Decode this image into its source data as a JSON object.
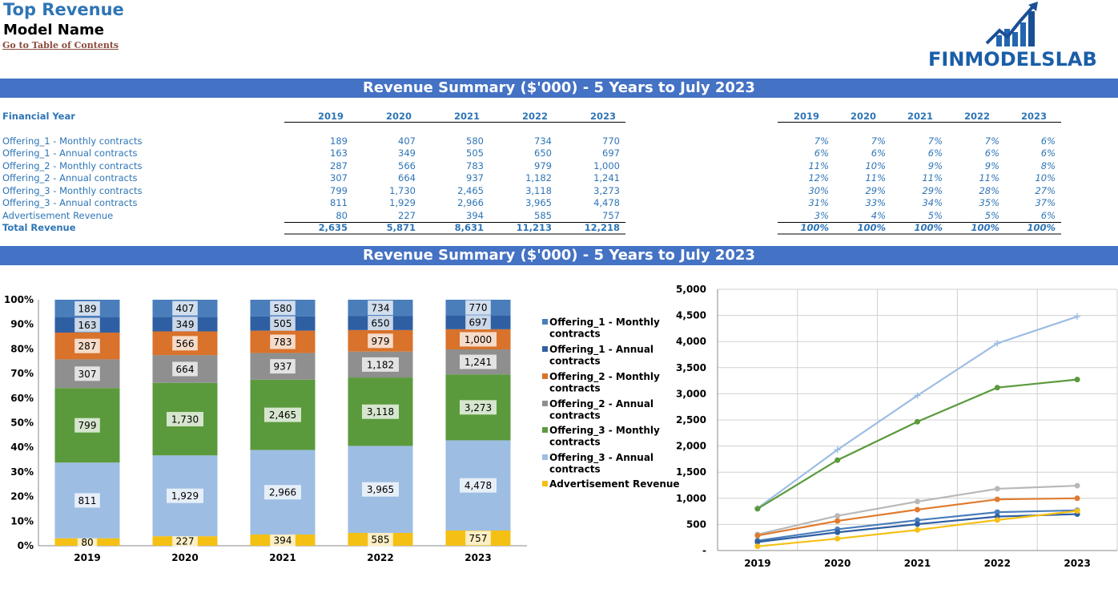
{
  "header": {
    "title": "Top Revenue",
    "model_name": "Model Name",
    "toc_link": "Go to Table of Contents",
    "logo_text": "FINMODELSLAB"
  },
  "banners": {
    "table_banner": "Revenue Summary ($'000) - 5 Years to July 2023",
    "chart_banner": "Revenue Summary ($'000) - 5 Years to July 2023"
  },
  "colors": {
    "banner": "#4472c4",
    "header_blue": "#2e75b6",
    "series": [
      "#4a7ebb",
      "#2f5fa3",
      "#d9722b",
      "#8f8f8f",
      "#5b9a3c",
      "#9dbde3",
      "#f5c014"
    ]
  },
  "table": {
    "row_header": "Financial Year",
    "years": [
      "2019",
      "2020",
      "2021",
      "2022",
      "2023"
    ],
    "rows": [
      {
        "label": "Offering_1 - Monthly contracts",
        "values": [
          "189",
          "407",
          "580",
          "734",
          "770"
        ],
        "pct": [
          "7%",
          "7%",
          "7%",
          "7%",
          "6%"
        ]
      },
      {
        "label": "Offering_1 - Annual contracts",
        "values": [
          "163",
          "349",
          "505",
          "650",
          "697"
        ],
        "pct": [
          "6%",
          "6%",
          "6%",
          "6%",
          "6%"
        ]
      },
      {
        "label": "Offering_2 - Monthly contracts",
        "values": [
          "287",
          "566",
          "783",
          "979",
          "1,000"
        ],
        "pct": [
          "11%",
          "10%",
          "9%",
          "9%",
          "8%"
        ]
      },
      {
        "label": "Offering_2 - Annual contracts",
        "values": [
          "307",
          "664",
          "937",
          "1,182",
          "1,241"
        ],
        "pct": [
          "12%",
          "11%",
          "11%",
          "11%",
          "10%"
        ]
      },
      {
        "label": "Offering_3 - Monthly contracts",
        "values": [
          "799",
          "1,730",
          "2,465",
          "3,118",
          "3,273"
        ],
        "pct": [
          "30%",
          "29%",
          "29%",
          "28%",
          "27%"
        ]
      },
      {
        "label": "Offering_3 - Annual contracts",
        "values": [
          "811",
          "1,929",
          "2,966",
          "3,965",
          "4,478"
        ],
        "pct": [
          "31%",
          "33%",
          "34%",
          "35%",
          "37%"
        ]
      },
      {
        "label": "Advertisement Revenue",
        "values": [
          "80",
          "227",
          "394",
          "585",
          "757"
        ],
        "pct": [
          "3%",
          "4%",
          "5%",
          "5%",
          "6%"
        ]
      }
    ],
    "total": {
      "label": "Total Revenue",
      "values": [
        "2,635",
        "5,871",
        "8,631",
        "11,213",
        "12,218"
      ],
      "pct": [
        "100%",
        "100%",
        "100%",
        "100%",
        "100%"
      ]
    }
  },
  "chart_data": [
    {
      "type": "bar",
      "stacked": "percent",
      "categories": [
        "2019",
        "2020",
        "2021",
        "2022",
        "2023"
      ],
      "series": [
        {
          "name": "Offering_1 - Monthly contracts",
          "values": [
            189,
            407,
            580,
            734,
            770
          ]
        },
        {
          "name": "Offering_1 - Annual contracts",
          "values": [
            163,
            349,
            505,
            650,
            697
          ]
        },
        {
          "name": "Offering_2 - Monthly contracts",
          "values": [
            287,
            566,
            783,
            979,
            1000
          ]
        },
        {
          "name": "Offering_2 - Annual contracts",
          "values": [
            307,
            664,
            937,
            1182,
            1241
          ]
        },
        {
          "name": "Offering_3 - Monthly contracts",
          "values": [
            799,
            1730,
            2465,
            3118,
            3273
          ]
        },
        {
          "name": "Offering_3 - Annual contracts",
          "values": [
            811,
            1929,
            2966,
            3965,
            4478
          ]
        },
        {
          "name": "Advertisement Revenue",
          "values": [
            80,
            227,
            394,
            585,
            757
          ]
        }
      ],
      "data_labels": [
        [
          "189",
          "407",
          "580",
          "734",
          "770"
        ],
        [
          "163",
          "349",
          "505",
          "650",
          "697"
        ],
        [
          "287",
          "566",
          "783",
          "979",
          "1,000"
        ],
        [
          "307",
          "664",
          "937",
          "1,182",
          "1,241"
        ],
        [
          "799",
          "1,730",
          "2,465",
          "3,118",
          "3,273"
        ],
        [
          "811",
          "1,929",
          "2,966",
          "3,965",
          "4,478"
        ],
        [
          "80",
          "227",
          "394",
          "585",
          "757"
        ]
      ],
      "yticks": [
        "0%",
        "10%",
        "20%",
        "30%",
        "40%",
        "50%",
        "60%",
        "70%",
        "80%",
        "90%",
        "100%"
      ],
      "ylim": [
        0,
        1
      ],
      "legend_position": "right"
    },
    {
      "type": "line",
      "categories": [
        "2019",
        "2020",
        "2021",
        "2022",
        "2023"
      ],
      "series": [
        {
          "values": [
            189,
            407,
            580,
            734,
            770
          ]
        },
        {
          "values": [
            163,
            349,
            505,
            650,
            697
          ]
        },
        {
          "values": [
            287,
            566,
            783,
            979,
            1000
          ]
        },
        {
          "values": [
            307,
            664,
            937,
            1182,
            1241
          ]
        },
        {
          "values": [
            799,
            1730,
            2465,
            3118,
            3273
          ]
        },
        {
          "values": [
            811,
            1929,
            2966,
            3965,
            4478
          ]
        },
        {
          "values": [
            80,
            227,
            394,
            585,
            757
          ]
        }
      ],
      "yticks": [
        "-",
        "500",
        "1,000",
        "1,500",
        "2,000",
        "2,500",
        "3,000",
        "3,500",
        "4,000",
        "4,500",
        "5,000"
      ],
      "ylim": [
        0,
        5000
      ],
      "grid": true,
      "legend": false
    }
  ]
}
